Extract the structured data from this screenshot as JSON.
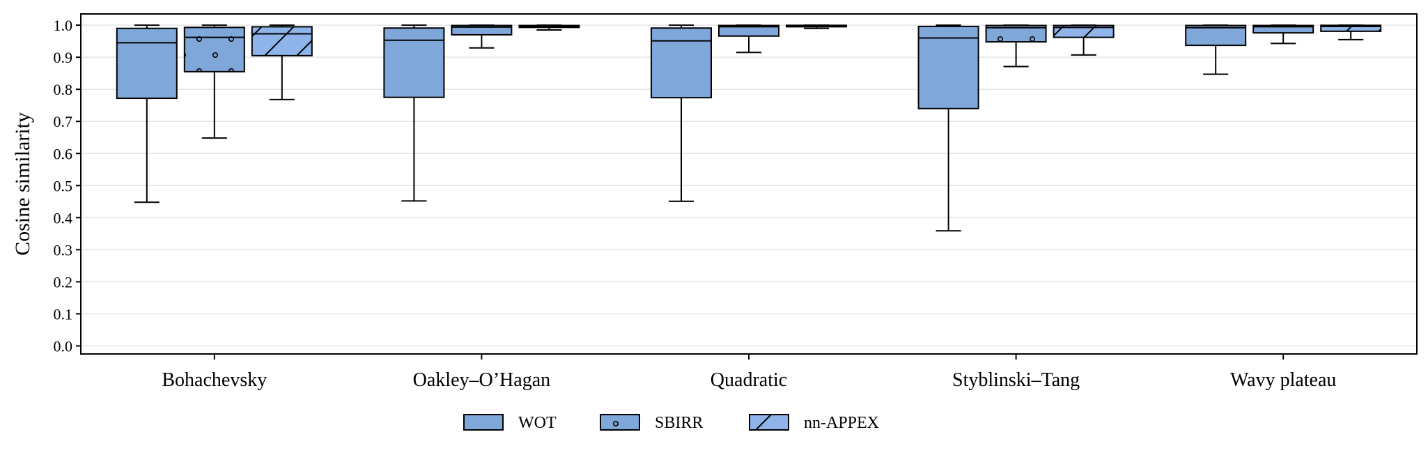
{
  "chart_data": {
    "type": "box",
    "ylabel": "Cosine similarity",
    "ylim": [
      -0.025,
      1.035
    ],
    "yticks": [
      0.0,
      0.1,
      0.2,
      0.3,
      0.4,
      0.5,
      0.6,
      0.7,
      0.8,
      0.9,
      1.0
    ],
    "ytick_labels": [
      "0.0",
      "0.1",
      "0.2",
      "0.3",
      "0.4",
      "0.5",
      "0.6",
      "0.7",
      "0.8",
      "0.9",
      "1.0"
    ],
    "grid": "horizontal",
    "categories": [
      "Bohachevsky",
      "Oakley–O’Hagan",
      "Quadratic",
      "Styblinski–Tang",
      "Wavy plateau"
    ],
    "series": [
      {
        "name": "WOT",
        "color": "#7fa7d9",
        "hatch": "none",
        "boxes": [
          {
            "whisker_low": 0.448,
            "q1": 0.772,
            "median": 0.945,
            "q3": 0.99,
            "whisker_high": 1.0
          },
          {
            "whisker_low": 0.452,
            "q1": 0.775,
            "median": 0.953,
            "q3": 0.991,
            "whisker_high": 1.0
          },
          {
            "whisker_low": 0.451,
            "q1": 0.774,
            "median": 0.951,
            "q3": 0.991,
            "whisker_high": 1.0
          },
          {
            "whisker_low": 0.359,
            "q1": 0.74,
            "median": 0.96,
            "q3": 0.996,
            "whisker_high": 1.0
          },
          {
            "whisker_low": 0.847,
            "q1": 0.937,
            "median": 0.992,
            "q3": 0.999,
            "whisker_high": 1.0
          }
        ]
      },
      {
        "name": "SBIRR",
        "color": "#7fa7d9",
        "hatch": "circles",
        "boxes": [
          {
            "whisker_low": 0.648,
            "q1": 0.855,
            "median": 0.962,
            "q3": 0.993,
            "whisker_high": 1.0
          },
          {
            "whisker_low": 0.929,
            "q1": 0.97,
            "median": 0.994,
            "q3": 0.999,
            "whisker_high": 1.0
          },
          {
            "whisker_low": 0.915,
            "q1": 0.966,
            "median": 0.995,
            "q3": 0.999,
            "whisker_high": 1.0
          },
          {
            "whisker_low": 0.871,
            "q1": 0.948,
            "median": 0.992,
            "q3": 0.999,
            "whisker_high": 1.0
          },
          {
            "whisker_low": 0.943,
            "q1": 0.976,
            "median": 0.995,
            "q3": 0.999,
            "whisker_high": 1.0
          }
        ]
      },
      {
        "name": "nn-APPEX",
        "color": "#8fb4ea",
        "hatch": "diagonal",
        "boxes": [
          {
            "whisker_low": 0.768,
            "q1": 0.905,
            "median": 0.973,
            "q3": 0.995,
            "whisker_high": 1.0
          },
          {
            "whisker_low": 0.985,
            "q1": 0.993,
            "median": 0.997,
            "q3": 0.999,
            "whisker_high": 1.0
          },
          {
            "whisker_low": 0.99,
            "q1": 0.995,
            "median": 0.998,
            "q3": 0.9995,
            "whisker_high": 1.0
          },
          {
            "whisker_low": 0.907,
            "q1": 0.962,
            "median": 0.993,
            "q3": 0.999,
            "whisker_high": 1.0
          },
          {
            "whisker_low": 0.955,
            "q1": 0.981,
            "median": 0.996,
            "q3": 0.9995,
            "whisker_high": 1.0
          }
        ]
      }
    ],
    "legend": {
      "position": "bottom-center",
      "entries": [
        "WOT",
        "SBIRR",
        "nn-APPEX"
      ]
    }
  }
}
